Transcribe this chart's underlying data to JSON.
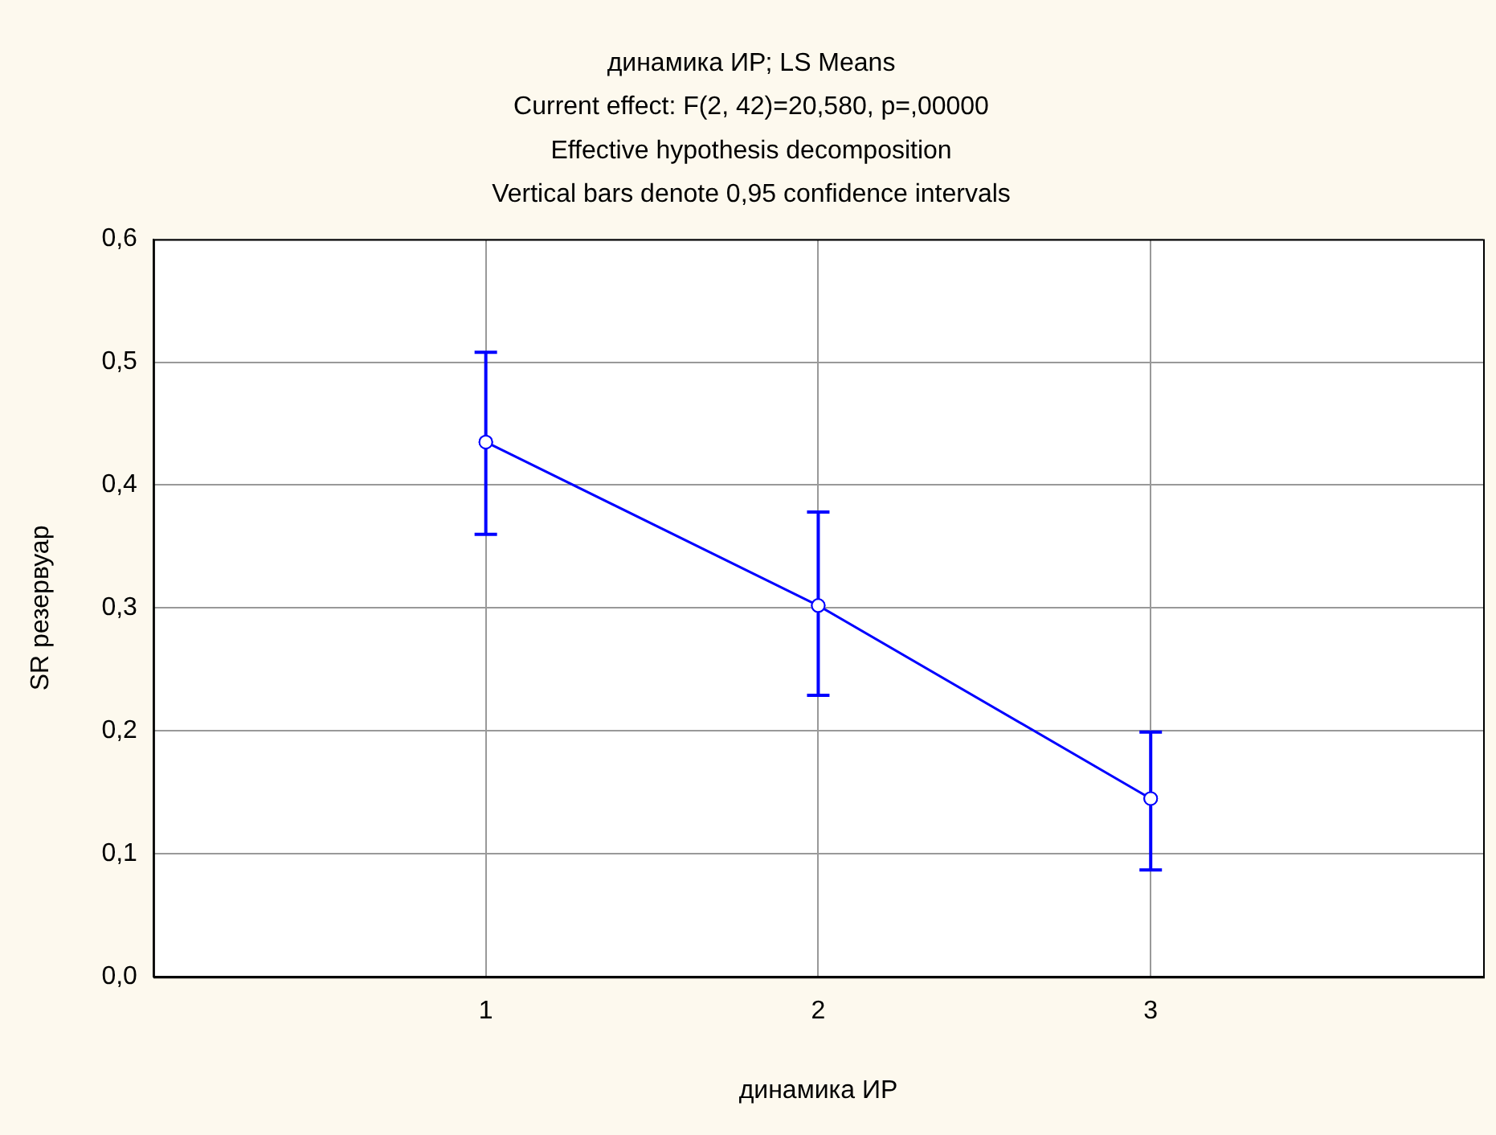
{
  "chart_data": {
    "type": "line",
    "title": "динамика ИР; LS Means",
    "subtitle": "Current effect: F(2, 42)=20,580, p=,00000",
    "annotations": [
      "Effective hypothesis decomposition",
      "Vertical bars denote 0,95 confidence intervals"
    ],
    "xlabel": "динамика ИР",
    "ylabel": "SR резервуар",
    "categories": [
      "1",
      "2",
      "3"
    ],
    "series": [
      {
        "color": "#0000ff",
        "values": [
          0.435,
          0.302,
          0.145
        ],
        "errors": [
          [
            0.36,
            0.508
          ],
          [
            0.229,
            0.378
          ],
          [
            0.087,
            0.199
          ]
        ]
      }
    ],
    "ylim": [
      0,
      0.6
    ],
    "yticks": [
      {
        "value": 0,
        "label": "0,0"
      },
      {
        "value": 0.1,
        "label": "0,1"
      },
      {
        "value": 0.2,
        "label": "0,2"
      },
      {
        "value": 0.3,
        "label": "0,3"
      },
      {
        "value": 0.4,
        "label": "0,4"
      },
      {
        "value": 0.5,
        "label": "0,5"
      },
      {
        "value": 0.6,
        "label": "0,6"
      }
    ],
    "grid": true,
    "legend": false,
    "marker": "circle",
    "line_style": "solid"
  }
}
